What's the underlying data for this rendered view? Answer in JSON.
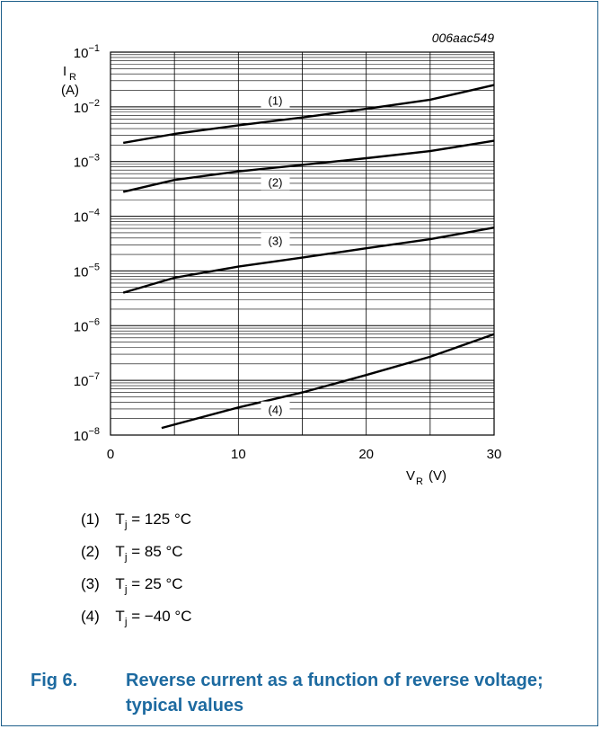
{
  "figure": {
    "ref_id": "006aac549",
    "label": "Fig 6.",
    "title": "Reverse current as a function of reverse voltage; typical values"
  },
  "chart_data": {
    "type": "line",
    "x_axis": {
      "symbol": "V",
      "subscript": "R",
      "unit": "(V)",
      "range": [
        0,
        30
      ],
      "ticks": [
        0,
        10,
        20,
        30
      ]
    },
    "y_axis": {
      "symbol": "I",
      "subscript": "R",
      "unit": "(A)",
      "scale": "log",
      "range": [
        1e-08,
        0.1
      ],
      "ticks": [
        {
          "value": 0.1,
          "base": "10",
          "exp": "−1"
        },
        {
          "value": 0.01,
          "base": "10",
          "exp": "−2"
        },
        {
          "value": 0.001,
          "base": "10",
          "exp": "−3"
        },
        {
          "value": 0.0001,
          "base": "10",
          "exp": "−4"
        },
        {
          "value": 1e-05,
          "base": "10",
          "exp": "−5"
        },
        {
          "value": 1e-06,
          "base": "10",
          "exp": "−6"
        },
        {
          "value": 1e-07,
          "base": "10",
          "exp": "−7"
        },
        {
          "value": 1e-08,
          "base": "10",
          "exp": "−8"
        }
      ]
    },
    "grid": true,
    "series": [
      {
        "name": "(1)",
        "label_x": 15,
        "x": [
          1,
          5,
          10,
          15,
          20,
          25,
          30
        ],
        "y": [
          0.0022,
          0.0032,
          0.0046,
          0.0064,
          0.0092,
          0.0135,
          0.025
        ]
      },
      {
        "name": "(2)",
        "label_x": 15,
        "x": [
          1,
          5,
          10,
          15,
          20,
          25,
          30
        ],
        "y": [
          0.00028,
          0.00046,
          0.00066,
          0.00087,
          0.00115,
          0.00155,
          0.0024
        ]
      },
      {
        "name": "(3)",
        "label_x": 15,
        "x": [
          1,
          5,
          10,
          15,
          20,
          25,
          30
        ],
        "y": [
          4e-06,
          7.5e-06,
          1.2e-05,
          1.75e-05,
          2.6e-05,
          3.8e-05,
          6.2e-05
        ]
      },
      {
        "name": "(4)",
        "label_x": 15,
        "x": [
          4,
          10,
          15,
          20,
          25,
          30
        ],
        "y": [
          1.35e-08,
          3.2e-08,
          6e-08,
          1.25e-07,
          2.7e-07,
          7e-07
        ]
      }
    ]
  },
  "legend": [
    {
      "num": "(1)",
      "sym": "T",
      "sub": "j",
      "value": "= 125 °C"
    },
    {
      "num": "(2)",
      "sym": "T",
      "sub": "j",
      "value": "= 85 °C"
    },
    {
      "num": "(3)",
      "sym": "T",
      "sub": "j",
      "value": "= 25 °C"
    },
    {
      "num": "(4)",
      "sym": "T",
      "sub": "j",
      "value": "= −40 °C"
    }
  ]
}
